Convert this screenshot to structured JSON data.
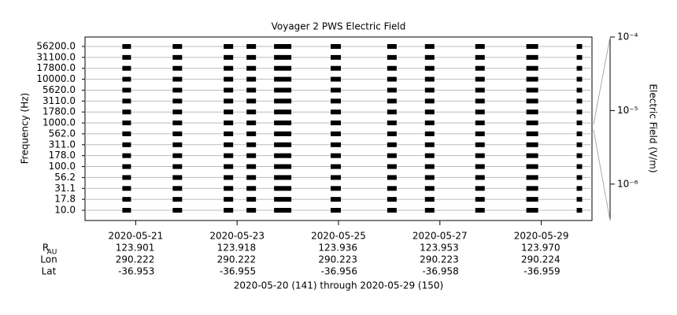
{
  "chart_data": {
    "type": "spectrogram",
    "title": "Voyager 2 PWS Electric Field",
    "ylabel": "Frequency (Hz)",
    "y2label": "Electric Field (V/m)",
    "channels": [
      "10.0",
      "17.8",
      "31.1",
      "56.2",
      "100.0",
      "178.0",
      "311.0",
      "562.0",
      "1000.0",
      "1780.0",
      "3110.0",
      "5620.0",
      "10000.0",
      "17800.0",
      "31100.0",
      "56200.0"
    ],
    "xlim": [
      141,
      151
    ],
    "xticks": [
      {
        "value": 142,
        "label": "2020-05-21"
      },
      {
        "value": 144,
        "label": "2020-05-23"
      },
      {
        "value": 146,
        "label": "2020-05-25"
      },
      {
        "value": 148,
        "label": "2020-05-27"
      },
      {
        "value": 150,
        "label": "2020-05-29"
      }
    ],
    "segments": [
      [
        141.736,
        141.907
      ],
      [
        142.729,
        142.915
      ],
      [
        143.736,
        143.922
      ],
      [
        144.186,
        144.372
      ],
      [
        144.729,
        145.07
      ],
      [
        145.845,
        146.047
      ],
      [
        146.961,
        147.147
      ],
      [
        147.705,
        147.891
      ],
      [
        148.698,
        148.884
      ],
      [
        149.705,
        149.938
      ],
      [
        150.698,
        150.806
      ]
    ],
    "color": "#000000",
    "y2log": true,
    "y2lim": [
      3.2e-07,
      0.0001
    ],
    "y2ticks": [
      {
        "value": 0.0001,
        "label": "10⁻⁴"
      },
      {
        "value": 1e-05,
        "label": "10⁻⁵"
      },
      {
        "value": 1e-06,
        "label": "10⁻⁶"
      }
    ],
    "ephemeris": [
      {
        "label": "R",
        "subscript": "AU",
        "values": [
          "123.901",
          "123.918",
          "123.936",
          "123.953",
          "123.970"
        ]
      },
      {
        "label": "Lon",
        "values": [
          "290.222",
          "290.222",
          "290.223",
          "290.223",
          "290.224"
        ]
      },
      {
        "label": "Lat",
        "values": [
          "-36.953",
          "-36.955",
          "-36.956",
          "-36.958",
          "-36.959"
        ]
      }
    ],
    "footer": "2020-05-20 (141) through 2020-05-29 (150)"
  }
}
